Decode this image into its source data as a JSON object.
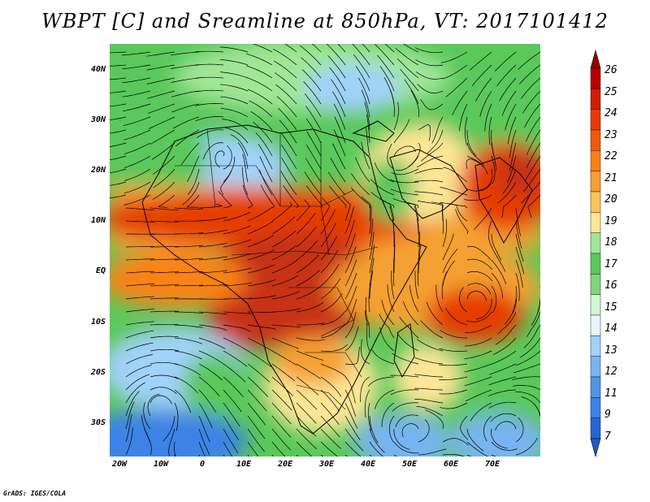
{
  "title": "WBPT [C] and Sreamline at 850hPa, VT: 2017101412",
  "credit": "GrADS: IGES/COLA",
  "map": {
    "lon_range": [
      -22,
      80
    ],
    "lat_range": [
      -36,
      46
    ],
    "lat_ticks": [
      {
        "value": 40,
        "label": "40N"
      },
      {
        "value": 30,
        "label": "30N"
      },
      {
        "value": 20,
        "label": "20N"
      },
      {
        "value": 10,
        "label": "10N"
      },
      {
        "value": 0,
        "label": "EQ"
      },
      {
        "value": -10,
        "label": "10S"
      },
      {
        "value": -20,
        "label": "20S"
      },
      {
        "value": -30,
        "label": "30S"
      }
    ],
    "lon_ticks": [
      {
        "value": -20,
        "label": "20W"
      },
      {
        "value": -10,
        "label": "10W"
      },
      {
        "value": 0,
        "label": "0"
      },
      {
        "value": 10,
        "label": "10E"
      },
      {
        "value": 20,
        "label": "20E"
      },
      {
        "value": 30,
        "label": "30E"
      },
      {
        "value": 40,
        "label": "40E"
      },
      {
        "value": 50,
        "label": "50E"
      },
      {
        "value": 60,
        "label": "60E"
      },
      {
        "value": 70,
        "label": "70E"
      }
    ]
  },
  "colorbar": {
    "labels": [
      "26",
      "25",
      "24",
      "23",
      "22",
      "21",
      "20",
      "19",
      "18",
      "17",
      "16",
      "15",
      "14",
      "13",
      "12",
      "11",
      "9",
      "7"
    ],
    "colors": [
      "#b40000",
      "#d21e00",
      "#e63c00",
      "#f05a0a",
      "#fa8214",
      "#f5a032",
      "#fac35a",
      "#fde696",
      "#a0e696",
      "#5ac85a",
      "#82d282",
      "#d2f5d2",
      "#e6f5ff",
      "#a0d2fa",
      "#78b4f0",
      "#5096e6",
      "#3c82e6",
      "#2864d2"
    ],
    "top_arrow_color": "#960000",
    "bottom_arrow_color": "#1e5ac8"
  },
  "colors": {
    "hot": "#c83214",
    "warm": "#f5a032",
    "mild": "#fde696",
    "cool_green": "#5ac85a",
    "cold_blue": "#5096e6"
  }
}
